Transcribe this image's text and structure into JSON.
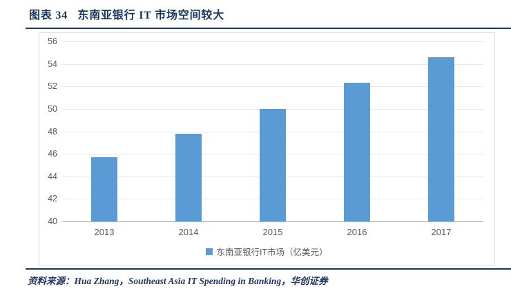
{
  "header": {
    "title": "图表 34   东南亚银行 IT 市场空间较大"
  },
  "footer": {
    "source_prefix": "资料来源：",
    "source_text": "Hua Zhang，Southeast Asia IT Spending in Banking，华创证券"
  },
  "colors": {
    "accent_navy": "#17375E",
    "bar_blue": "#5B9BD5",
    "axis_text_gray": "#595959",
    "gridline_gray": "#E7E7E7",
    "axis_line_gray": "#B3B3B3",
    "box_border_gray": "#D9D9D9"
  },
  "chart_data": {
    "type": "bar",
    "title": "",
    "xlabel": "",
    "ylabel": "",
    "categories": [
      "2013",
      "2014",
      "2015",
      "2016",
      "2017"
    ],
    "series": [
      {
        "name": "东南亚银行IT市场（亿美元）",
        "values": [
          45.7,
          47.8,
          50.0,
          52.3,
          54.6
        ]
      }
    ],
    "ylim": [
      40,
      56
    ],
    "ytick_step": 2,
    "yticks": [
      40,
      42,
      44,
      46,
      48,
      50,
      52,
      54,
      56
    ],
    "grid": true,
    "legend_position": "bottom",
    "bar_color": "#5B9BD5"
  }
}
